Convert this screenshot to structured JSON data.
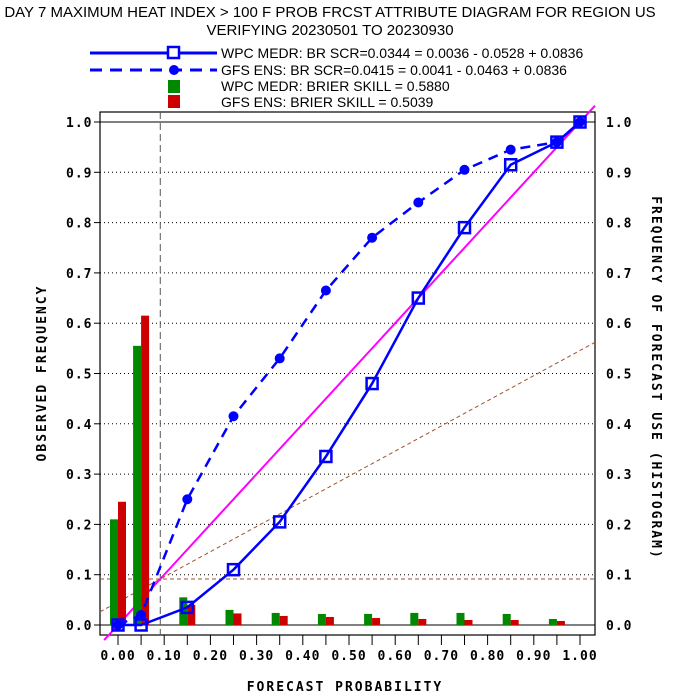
{
  "chart_data": {
    "type": "line",
    "title": "DAY 7 MAXIMUM HEAT INDEX > 100 F PROB FRCST ATTRIBUTE DIAGRAM FOR REGION US",
    "subtitle": "VERIFYING 20230501 TO 20230930",
    "xlabel": "FORECAST PROBABILITY",
    "ylabel": "OBSERVED FREQUENCY",
    "y2label": "FREQUENCY OF FORECAST USE (HISTOGRAM)",
    "xlim": [
      0,
      1
    ],
    "ylim": [
      0,
      1
    ],
    "xticks": [
      "0.00",
      "0.10",
      "0.20",
      "0.30",
      "0.40",
      "0.50",
      "0.60",
      "0.70",
      "0.80",
      "0.90",
      "1.00"
    ],
    "yticks": [
      "0.0",
      "0.1",
      "0.2",
      "0.3",
      "0.4",
      "0.5",
      "0.6",
      "0.7",
      "0.8",
      "0.9",
      "1.0"
    ],
    "climatology": 0.0915,
    "legend": [
      "WPC MEDR: BR SCR=0.0344 = 0.0036 - 0.0528 + 0.0836",
      "GFS ENS: BR SCR=0.0415 = 0.0041 - 0.0463 + 0.0836",
      "WPC MEDR:  BRIER SKILL = 0.5880",
      "GFS ENS:  BRIER SKILL = 0.5039"
    ],
    "series": [
      {
        "name": "WPC MEDR",
        "color": "#0000ff",
        "style": "solid-square",
        "x": [
          0,
          0.05,
          0.15,
          0.25,
          0.35,
          0.45,
          0.55,
          0.65,
          0.75,
          0.85,
          0.95,
          1.0
        ],
        "y": [
          0,
          0.0,
          0.035,
          0.11,
          0.205,
          0.335,
          0.48,
          0.65,
          0.79,
          0.915,
          0.96,
          1.0
        ]
      },
      {
        "name": "GFS ENS",
        "color": "#0000ff",
        "style": "dashed-dot",
        "x": [
          0,
          0.05,
          0.15,
          0.25,
          0.35,
          0.45,
          0.55,
          0.65,
          0.75,
          0.85,
          0.95,
          1.0
        ],
        "y": [
          0,
          0.02,
          0.25,
          0.415,
          0.53,
          0.665,
          0.77,
          0.84,
          0.905,
          0.945,
          0.96,
          1.0
        ]
      }
    ],
    "histogram": {
      "bins": [
        0,
        0.05,
        0.15,
        0.25,
        0.35,
        0.45,
        0.55,
        0.65,
        0.75,
        0.85,
        0.95
      ],
      "series": [
        {
          "name": "WPC MEDR",
          "color": "#008800",
          "values": [
            0.21,
            0.555,
            0.055,
            0.03,
            0.024,
            0.022,
            0.022,
            0.024,
            0.024,
            0.022,
            0.012
          ]
        },
        {
          "name": "GFS ENS",
          "color": "#cc0000",
          "values": [
            0.245,
            0.615,
            0.04,
            0.023,
            0.018,
            0.016,
            0.014,
            0.012,
            0.01,
            0.01,
            0.008
          ]
        }
      ]
    }
  }
}
